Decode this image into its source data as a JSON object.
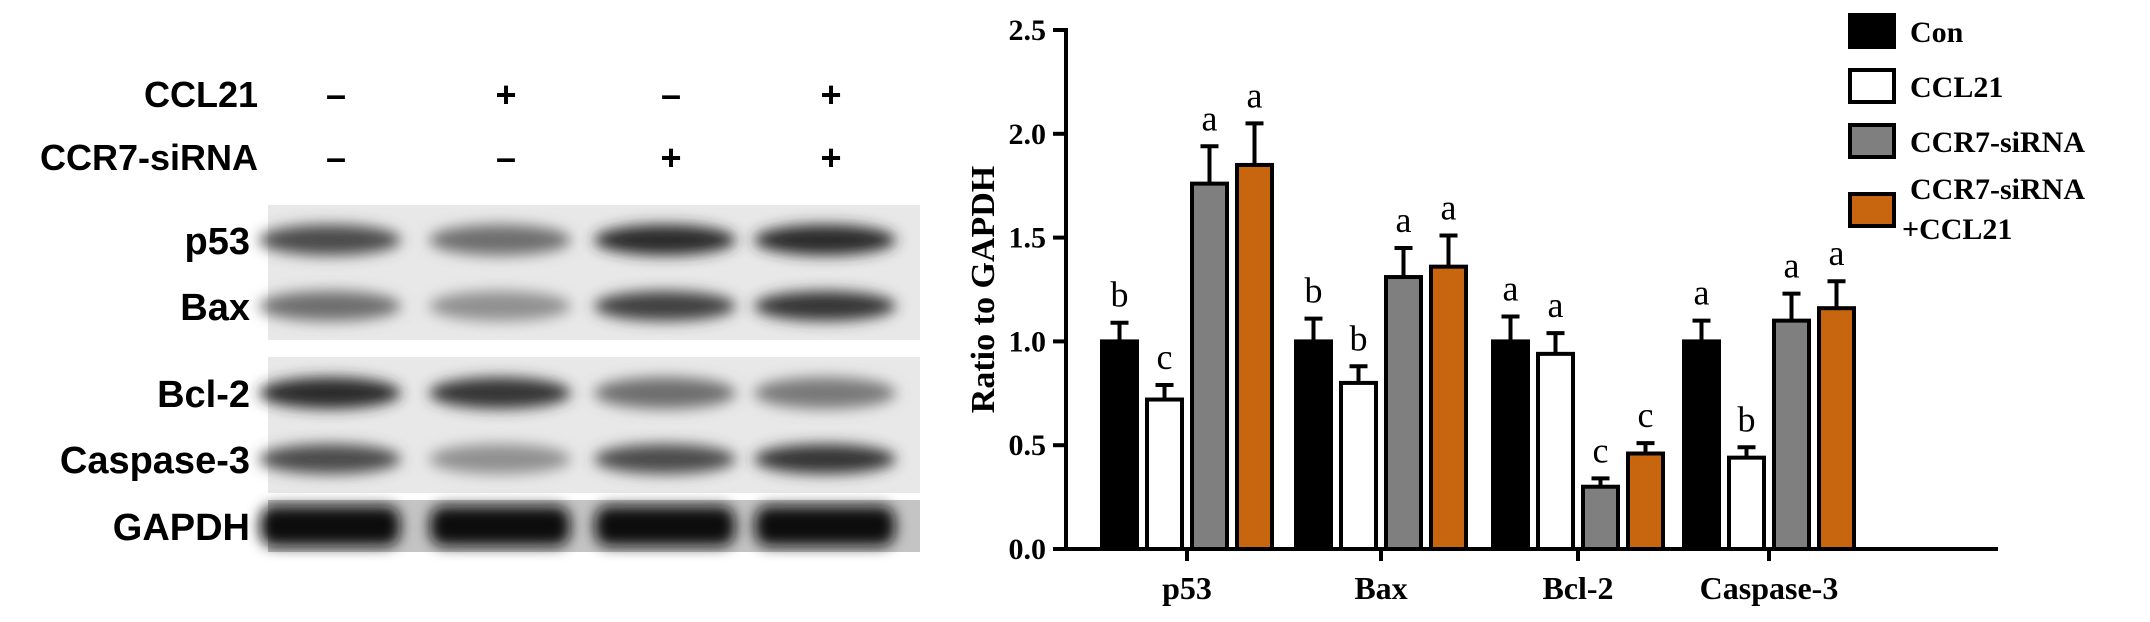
{
  "blot": {
    "treatment_rows": [
      {
        "label": "CCL21",
        "signs": [
          "–",
          "+",
          "–",
          "+"
        ]
      },
      {
        "label": "CCR7-siRNA",
        "signs": [
          "–",
          "–",
          "+",
          "+"
        ]
      }
    ],
    "proteins": [
      {
        "label": "p53",
        "intensity": [
          0.75,
          0.6,
          0.9,
          0.9
        ]
      },
      {
        "label": "Bax",
        "intensity": [
          0.6,
          0.45,
          0.8,
          0.85
        ]
      },
      {
        "label": "Bcl-2",
        "intensity": [
          0.9,
          0.85,
          0.6,
          0.55
        ]
      },
      {
        "label": "Caspase-3",
        "intensity": [
          0.75,
          0.45,
          0.75,
          0.85
        ]
      },
      {
        "label": "GAPDH",
        "intensity": [
          1,
          1,
          1,
          1
        ]
      }
    ]
  },
  "chart_data": {
    "type": "bar",
    "ylabel": "Ratio to GAPDH",
    "ylim": [
      0,
      2.5
    ],
    "yticks": [
      "0.0",
      "0.5",
      "1.0",
      "1.5",
      "2.0",
      "2.5"
    ],
    "categories": [
      "p53",
      "Bax",
      "Bcl-2",
      "Caspase-3"
    ],
    "series": [
      {
        "name": "Con",
        "color": "#000000",
        "values": [
          1.0,
          1.0,
          1.0,
          1.0
        ],
        "errors": [
          0.09,
          0.11,
          0.12,
          0.1
        ],
        "letters": [
          "b",
          "b",
          "a",
          "a"
        ]
      },
      {
        "name": "CCL21",
        "color": "#ffffff",
        "values": [
          0.72,
          0.8,
          0.94,
          0.44
        ],
        "errors": [
          0.07,
          0.08,
          0.1,
          0.05
        ],
        "letters": [
          "c",
          "b",
          "a",
          "b"
        ]
      },
      {
        "name": "CCR7-siRNA",
        "color": "#7f7f7f",
        "values": [
          1.76,
          1.31,
          0.3,
          1.1
        ],
        "errors": [
          0.18,
          0.14,
          0.04,
          0.13
        ],
        "letters": [
          "a",
          "a",
          "c",
          "a"
        ]
      },
      {
        "name": "CCR7-siRNA\n+CCL21",
        "color": "#c8650f",
        "values": [
          1.85,
          1.36,
          0.46,
          1.16
        ],
        "errors": [
          0.2,
          0.15,
          0.05,
          0.13
        ],
        "letters": [
          "a",
          "a",
          "c",
          "a"
        ]
      }
    ],
    "legend_position": "top-right"
  }
}
